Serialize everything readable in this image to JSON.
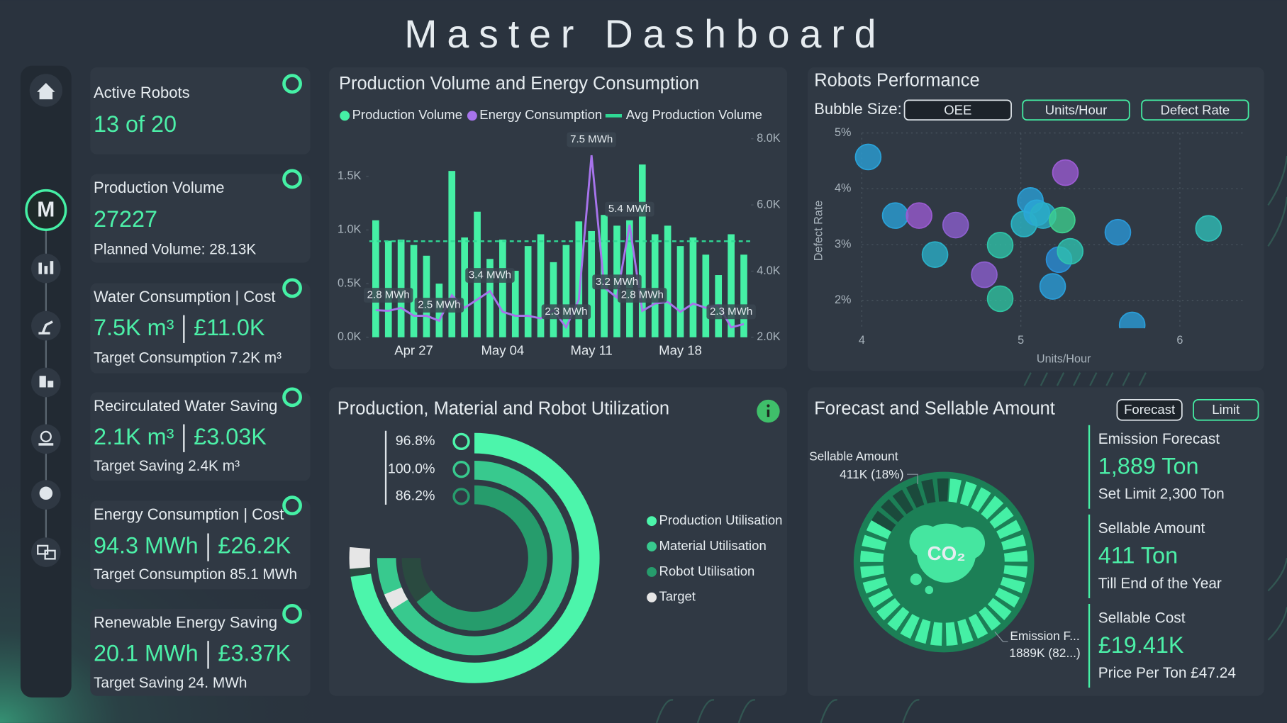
{
  "title": "Master Dashboard",
  "nav": {
    "active": "M"
  },
  "kpis": [
    {
      "label": "Active Robots",
      "value": "13 of 20"
    },
    {
      "label": "Production Volume",
      "value": "27227",
      "sub": "Planned Volume: 28.13K"
    },
    {
      "label": "Water Consumption | Cost",
      "value": "7.5K m³",
      "cost": "£11.0K",
      "sub": "Target Consumption 7.2K m³"
    },
    {
      "label": "Recirculated Water Saving",
      "value": "2.1K m³",
      "cost": "£3.03K",
      "sub": "Target Saving 2.4K m³"
    },
    {
      "label": "Energy Consumption | Cost",
      "value": "94.3 MWh",
      "cost": "£26.2K",
      "sub": "Target Consumption 85.1 MWh"
    },
    {
      "label": "Renewable Energy Saving",
      "value": "20.1 MWh",
      "cost": "£3.37K",
      "sub": "Target Saving 24. MWh"
    }
  ],
  "production": {
    "type": "bar-line",
    "title": "Production Volume and Energy Consumption",
    "categories": [
      null,
      null,
      null,
      "Apr 27",
      null,
      null,
      null,
      null,
      null,
      null,
      "May 04",
      null,
      null,
      null,
      null,
      null,
      null,
      "May 11",
      null,
      null,
      null,
      null,
      null,
      null,
      "May 18",
      null,
      null,
      null,
      null,
      null
    ],
    "series": [
      {
        "name": "Production Volume",
        "color": "#45f0a5",
        "values": [
          1090,
          900,
          910,
          860,
          760,
          500,
          1550,
          930,
          1170,
          730,
          910,
          620,
          850,
          960,
          700,
          860,
          1080,
          990,
          1140,
          1040,
          1090,
          1610,
          960,
          1040,
          850,
          930,
          770,
          580,
          960,
          770
        ]
      },
      {
        "name": "Energy Consumption",
        "color": "#a774ec",
        "axis": "y2",
        "values": [
          2820,
          2800,
          2890,
          2650,
          2650,
          2500,
          3270,
          2890,
          3140,
          3400,
          2770,
          2650,
          2650,
          2570,
          2820,
          2300,
          3140,
          7500,
          3510,
          3200,
          5400,
          2800,
          3020,
          3070,
          2770,
          3020,
          2890,
          2970,
          2300,
          2400
        ],
        "value_labels": [
          null,
          "2.8 MWh",
          null,
          null,
          null,
          "2.5 MWh",
          null,
          null,
          null,
          "3.4 MWh",
          null,
          null,
          null,
          null,
          null,
          "2.3 MWh",
          null,
          "7.5 MWh",
          null,
          "3.2 MWh",
          "5.4 MWh",
          "2.8 MWh",
          null,
          null,
          null,
          null,
          null,
          null,
          "2.3 MWh",
          null
        ]
      },
      {
        "name": "Avg Production Volume",
        "color": "#2fd894",
        "value": 895
      }
    ],
    "ylim": [
      0,
      1850
    ],
    "yticks": [
      {
        "value": 0,
        "label": "0.0K"
      },
      {
        "value": 500,
        "label": "0.5K"
      },
      {
        "value": 1000,
        "label": "1.0K"
      },
      {
        "value": 1500,
        "label": "1.5K"
      }
    ],
    "y2lim": [
      2000,
      8000
    ],
    "y2ticks": [
      {
        "value": 2000,
        "label": "2.0K"
      },
      {
        "value": 4000,
        "label": "4.0K"
      },
      {
        "value": 6000,
        "label": "6.0K"
      },
      {
        "value": 8000,
        "label": "8.0K"
      }
    ]
  },
  "robots": {
    "type": "scatter",
    "title": "Robots Performance",
    "bubble_size_label": "Bubble Size:",
    "buttons": [
      "OEE",
      "Units/Hour",
      "Defect Rate"
    ],
    "selected_button": 0,
    "x_label": "Units/Hour",
    "y_label": "Defect Rate",
    "x": [
      4.04,
      4.21,
      4.36,
      4.46,
      4.59,
      4.77,
      4.87,
      4.87,
      5.02,
      5.06,
      5.1,
      5.14,
      5.2,
      5.24,
      5.26,
      5.28,
      5.31,
      5.61,
      5.7,
      6.18
    ],
    "values": [
      4.57,
      3.52,
      3.52,
      2.82,
      3.35,
      2.46,
      2.99,
      2.03,
      3.37,
      3.79,
      3.57,
      3.52,
      2.25,
      2.73,
      3.44,
      4.29,
      2.88,
      3.22,
      1.56,
      3.29
    ],
    "colors": [
      "#2aa2d8",
      "#2aa2d8",
      "#9b5bd2",
      "#2ab0c8",
      "#8d5fd0",
      "#8d5fd0",
      "#2fc3a8",
      "#2fc3a0",
      "#2ab8c8",
      "#2aa2d8",
      "#2aa8d8",
      "#2ab0c8",
      "#2a9ed8",
      "#2a90d8",
      "#3ecf8e",
      "#9b5bd2",
      "#2fc3b0",
      "#2a98d8",
      "#2a9ed8",
      "#2fc0b8"
    ],
    "xlim": [
      4,
      6.4
    ],
    "xticks": [
      4,
      5,
      6
    ],
    "ylim": [
      1.5,
      5
    ],
    "yticks": [
      {
        "value": 2,
        "label": "2%"
      },
      {
        "value": 3,
        "label": "3%"
      },
      {
        "value": 4,
        "label": "4%"
      },
      {
        "value": 5,
        "label": "5%"
      }
    ],
    "grid": true
  },
  "utilization": {
    "type": "radial-bar",
    "title": "Production, Material and Robot Utilization",
    "max": 100,
    "series": [
      {
        "name": "Production Utilisation",
        "value": 96.8,
        "label": "96.8%",
        "target": 100,
        "color": "#4cf5ab"
      },
      {
        "name": "Material Utilisation",
        "value": 100.0,
        "label": "100.0%",
        "target": 90,
        "color": "#38c98e"
      },
      {
        "name": "Robot Utilisation",
        "value": 86.2,
        "label": "86.2%",
        "target": null,
        "color": "#269c6c"
      }
    ],
    "target_name": "Target",
    "target_color": "#e6e6e6"
  },
  "forecast": {
    "type": "donut",
    "title": "Forecast and Sellable Amount",
    "buttons": [
      "Forecast",
      "Limit"
    ],
    "center_text": "CO₂",
    "slices": [
      {
        "name": "Sellable Amount",
        "value": 411000,
        "label": "411K (18%)",
        "color": "#1b4a3c"
      },
      {
        "name": "Emission F...",
        "value": 1889000,
        "label": "1889K (82...)",
        "color": "#45f0a5"
      }
    ],
    "kpis": [
      {
        "label": "Emission Forecast",
        "value": "1,889 Ton",
        "sub": "Set Limit 2,300 Ton"
      },
      {
        "label": "Sellable Amount",
        "value": "411 Ton",
        "sub": "Till End of the Year"
      },
      {
        "label": "Sellable Cost",
        "value": "£19.41K",
        "sub": "Price Per Ton £47.24"
      }
    ]
  }
}
